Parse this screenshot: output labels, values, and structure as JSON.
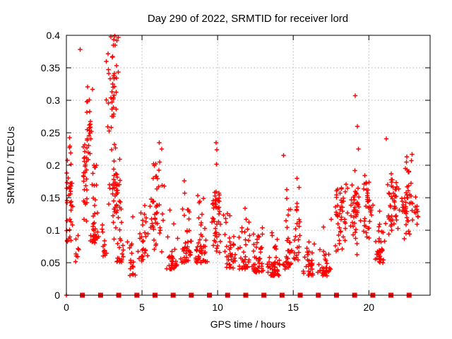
{
  "window": {
    "kind": "gnuplot-style scatter plot image",
    "background": "#ffffff"
  },
  "colors": {
    "marker": "#ff0000",
    "grid": "#b3b3b3",
    "axis": "#000000",
    "text": "#000000"
  },
  "chart_data": {
    "type": "scatter",
    "title": "Day 290 of 2022, SRMTID for receiver lord",
    "xlabel": "GPS time / hours",
    "ylabel": "SRMTID / TECUs",
    "xlim": [
      0,
      24.05
    ],
    "ylim": [
      0,
      0.4
    ],
    "xticks": [
      0,
      5,
      10,
      15,
      20
    ],
    "xtick_labels": [
      "0",
      "5",
      "10",
      "15",
      "20"
    ],
    "yticks": [
      0,
      0.05,
      0.1,
      0.15,
      0.2,
      0.25,
      0.3,
      0.35,
      0.4
    ],
    "ytick_labels": [
      "0",
      "0.05",
      "0.1",
      "0.15",
      "0.2",
      "0.25",
      "0.3",
      "0.35",
      "0.4"
    ],
    "grid": true,
    "legend": false,
    "series": [
      {
        "name": "srmtid-values",
        "marker": "plus",
        "color": "#ff0000",
        "seed": 1337,
        "notable_points": [
          [
            0.0,
            0.0
          ],
          [
            0.92,
            0.378
          ],
          [
            2.75,
            0.372
          ],
          [
            2.95,
            0.398
          ],
          [
            3.1,
            0.385
          ],
          [
            3.2,
            0.399
          ],
          [
            3.35,
            0.392
          ],
          [
            6.15,
            0.235
          ],
          [
            6.3,
            0.225
          ],
          [
            9.9,
            0.235
          ],
          [
            9.95,
            0.224
          ],
          [
            14.35,
            0.215
          ],
          [
            19.1,
            0.307
          ],
          [
            19.25,
            0.26
          ],
          [
            19.3,
            0.225
          ],
          [
            21.15,
            0.241
          ],
          [
            22.5,
            0.213
          ],
          [
            22.85,
            0.217
          ]
        ],
        "density_clusters": [
          {
            "x": [
              0.0,
              0.1
            ],
            "y": [
              0.05,
              0.22
            ],
            "n": 12,
            "bias": "uniform"
          },
          {
            "x": [
              0.1,
              0.45
            ],
            "y": [
              0.06,
              0.27
            ],
            "n": 30,
            "bias": "mid"
          },
          {
            "x": [
              0.55,
              0.95
            ],
            "y": [
              0.05,
              0.11
            ],
            "n": 8,
            "bias": "low"
          },
          {
            "x": [
              1.0,
              1.5
            ],
            "y": [
              0.1,
              0.27
            ],
            "n": 30,
            "bias": "mid"
          },
          {
            "x": [
              1.25,
              1.8
            ],
            "y": [
              0.19,
              0.345
            ],
            "n": 22,
            "bias": "mid"
          },
          {
            "x": [
              1.5,
              2.2
            ],
            "y": [
              0.08,
              0.23
            ],
            "n": 40,
            "bias": "low"
          },
          {
            "x": [
              2.3,
              2.7
            ],
            "y": [
              0.06,
              0.16
            ],
            "n": 12,
            "bias": "low"
          },
          {
            "x": [
              2.6,
              3.55
            ],
            "y": [
              0.21,
              0.4
            ],
            "n": 38,
            "bias": "mid"
          },
          {
            "x": [
              2.75,
              3.7
            ],
            "y": [
              0.08,
              0.24
            ],
            "n": 45,
            "bias": "mid"
          },
          {
            "x": [
              3.3,
              4.0
            ],
            "y": [
              0.05,
              0.17
            ],
            "n": 22,
            "bias": "low"
          },
          {
            "x": [
              4.0,
              4.7
            ],
            "y": [
              0.03,
              0.13
            ],
            "n": 18,
            "bias": "low"
          },
          {
            "x": [
              4.7,
              5.45
            ],
            "y": [
              0.05,
              0.165
            ],
            "n": 28,
            "bias": "low"
          },
          {
            "x": [
              5.5,
              6.5
            ],
            "y": [
              0.06,
              0.22
            ],
            "n": 45,
            "bias": "mid"
          },
          {
            "x": [
              6.6,
              7.5
            ],
            "y": [
              0.04,
              0.15
            ],
            "n": 30,
            "bias": "low"
          },
          {
            "x": [
              7.5,
              8.4
            ],
            "y": [
              0.05,
              0.2
            ],
            "n": 38,
            "bias": "low"
          },
          {
            "x": [
              8.4,
              9.4
            ],
            "y": [
              0.05,
              0.185
            ],
            "n": 45,
            "bias": "low"
          },
          {
            "x": [
              9.5,
              10.3
            ],
            "y": [
              0.05,
              0.22
            ],
            "n": 45,
            "bias": "mid"
          },
          {
            "x": [
              10.3,
              11.3
            ],
            "y": [
              0.04,
              0.17
            ],
            "n": 38,
            "bias": "low"
          },
          {
            "x": [
              11.3,
              12.2
            ],
            "y": [
              0.04,
              0.145
            ],
            "n": 34,
            "bias": "low"
          },
          {
            "x": [
              12.2,
              13.2
            ],
            "y": [
              0.035,
              0.13
            ],
            "n": 45,
            "bias": "low"
          },
          {
            "x": [
              13.2,
              14.3
            ],
            "y": [
              0.03,
              0.1
            ],
            "n": 50,
            "bias": "low"
          },
          {
            "x": [
              14.3,
              15.0
            ],
            "y": [
              0.04,
              0.19
            ],
            "n": 32,
            "bias": "low"
          },
          {
            "x": [
              15.0,
              15.6
            ],
            "y": [
              0.05,
              0.21
            ],
            "n": 24,
            "bias": "low"
          },
          {
            "x": [
              15.6,
              16.5
            ],
            "y": [
              0.03,
              0.12
            ],
            "n": 34,
            "bias": "low"
          },
          {
            "x": [
              16.5,
              17.6
            ],
            "y": [
              0.03,
              0.14
            ],
            "n": 34,
            "bias": "low"
          },
          {
            "x": [
              17.6,
              18.7
            ],
            "y": [
              0.05,
              0.2
            ],
            "n": 45,
            "bias": "mid"
          },
          {
            "x": [
              18.7,
              19.5
            ],
            "y": [
              0.06,
              0.21
            ],
            "n": 40,
            "bias": "mid"
          },
          {
            "x": [
              19.5,
              20.3
            ],
            "y": [
              0.07,
              0.2
            ],
            "n": 34,
            "bias": "mid"
          },
          {
            "x": [
              20.3,
              21.1
            ],
            "y": [
              0.05,
              0.155
            ],
            "n": 34,
            "bias": "low"
          },
          {
            "x": [
              21.1,
              22.1
            ],
            "y": [
              0.08,
              0.205
            ],
            "n": 45,
            "bias": "mid"
          },
          {
            "x": [
              22.1,
              23.0
            ],
            "y": [
              0.08,
              0.215
            ],
            "n": 45,
            "bias": "mid"
          },
          {
            "x": [
              23.0,
              23.3
            ],
            "y": [
              0.1,
              0.16
            ],
            "n": 10,
            "bias": "mid"
          }
        ]
      },
      {
        "name": "hourly-baseline-markers",
        "marker": "filled-square",
        "color": "#ff0000",
        "y": 0,
        "x": [
          1.06,
          2.26,
          3.46,
          4.66,
          5.86,
          7.06,
          8.26,
          9.46,
          10.66,
          11.86,
          13.06,
          14.26,
          15.46,
          16.66,
          17.86,
          19.06,
          20.26,
          21.46,
          22.66
        ]
      }
    ]
  }
}
